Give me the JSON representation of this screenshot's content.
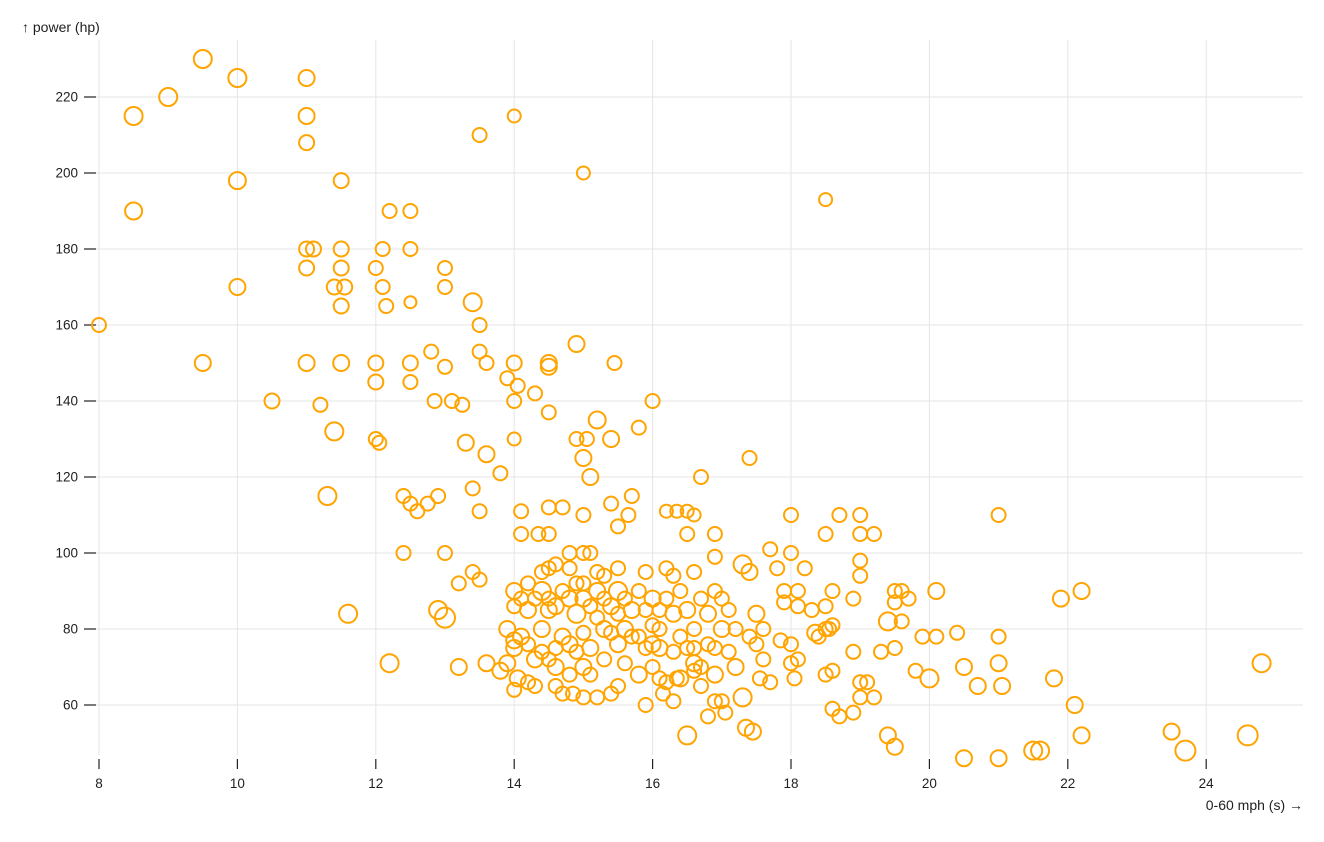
{
  "chart_data": {
    "type": "scatter",
    "title": "",
    "xlabel": "0-60 mph (s) →",
    "ylabel": "↑ power (hp)",
    "x_field": "0-60 mph (s)",
    "y_field": "power (hp)",
    "grid": true,
    "legend": "none",
    "marker": {
      "shape": "circle",
      "fill": "none",
      "stroke_color": "#ffa400",
      "stroke_width": 2
    },
    "colors": {
      "accent": "#ffa400",
      "grid": "#e5e5e5",
      "text": "#1f1f1f",
      "tick": "#222222",
      "background": "#ffffff"
    },
    "x_axis": {
      "label": "0-60 mph (s) →",
      "ticks": [
        8,
        10,
        12,
        14,
        16,
        18,
        20,
        22,
        24
      ],
      "min": 8,
      "max": 25.4
    },
    "y_axis": {
      "label": "↑ power (hp)",
      "ticks": [
        60,
        80,
        100,
        120,
        140,
        160,
        180,
        200,
        220
      ],
      "min": 44,
      "max": 232
    },
    "points": [
      [
        9.5,
        230,
        9
      ],
      [
        10,
        225,
        9
      ],
      [
        11,
        225,
        8
      ],
      [
        9,
        220,
        9
      ],
      [
        8.5,
        215,
        9
      ],
      [
        11,
        215,
        8
      ],
      [
        14,
        215,
        6.5
      ],
      [
        13.5,
        210,
        7
      ],
      [
        11,
        208,
        7.5
      ],
      [
        15,
        200,
        6.5
      ],
      [
        10,
        198,
        8.5
      ],
      [
        11.5,
        198,
        7.5
      ],
      [
        18.5,
        193,
        6.5
      ],
      [
        8.5,
        190,
        8.5
      ],
      [
        12.2,
        190,
        7
      ],
      [
        12.5,
        190,
        7
      ],
      [
        11,
        180,
        7.5
      ],
      [
        11.1,
        180,
        7.5
      ],
      [
        11.5,
        180,
        7.5
      ],
      [
        12.1,
        180,
        7
      ],
      [
        12.5,
        180,
        7
      ],
      [
        11,
        175,
        7.5
      ],
      [
        11.5,
        175,
        7.5
      ],
      [
        12,
        175,
        7
      ],
      [
        13,
        175,
        7
      ],
      [
        10,
        170,
        8
      ],
      [
        11.4,
        170,
        7.5
      ],
      [
        11.55,
        170,
        7.5
      ],
      [
        12.1,
        170,
        7
      ],
      [
        13,
        170,
        7
      ],
      [
        11.5,
        165,
        7.5
      ],
      [
        12.15,
        165,
        7
      ],
      [
        12.5,
        166,
        6
      ],
      [
        13.4,
        166,
        9
      ],
      [
        8,
        160,
        7
      ],
      [
        13.5,
        160,
        7
      ],
      [
        14.9,
        155,
        8
      ],
      [
        13.5,
        153,
        7
      ],
      [
        12.8,
        153,
        7
      ],
      [
        9.5,
        150,
        8
      ],
      [
        11,
        150,
        8
      ],
      [
        11.5,
        150,
        8
      ],
      [
        12,
        150,
        7.5
      ],
      [
        12.5,
        150,
        7.5
      ],
      [
        13.6,
        150,
        7
      ],
      [
        14,
        150,
        7.5
      ],
      [
        14.5,
        150,
        8
      ],
      [
        14.5,
        149,
        8
      ],
      [
        15.45,
        150,
        7
      ],
      [
        13,
        149,
        7
      ],
      [
        12,
        145,
        7.5
      ],
      [
        12.5,
        145,
        7
      ],
      [
        13.9,
        146,
        7
      ],
      [
        14.05,
        144,
        7
      ],
      [
        14.3,
        142,
        7
      ],
      [
        10.5,
        140,
        7.5
      ],
      [
        11.2,
        139,
        7
      ],
      [
        12.85,
        140,
        7
      ],
      [
        13.1,
        140,
        7
      ],
      [
        13.25,
        139,
        7
      ],
      [
        14,
        140,
        7
      ],
      [
        16,
        140,
        7
      ],
      [
        14.5,
        137,
        7
      ],
      [
        15.2,
        135,
        8.5
      ],
      [
        15.8,
        133,
        7
      ],
      [
        11.4,
        132,
        9
      ],
      [
        12,
        130,
        7
      ],
      [
        12.05,
        129,
        7
      ],
      [
        14,
        130,
        6.5
      ],
      [
        14.9,
        130,
        7
      ],
      [
        15.05,
        130,
        7
      ],
      [
        15.4,
        130,
        8
      ],
      [
        13.3,
        129,
        8
      ],
      [
        13.6,
        126,
        8
      ],
      [
        15,
        125,
        8
      ],
      [
        17.4,
        125,
        7
      ],
      [
        13.8,
        121,
        7
      ],
      [
        15.1,
        120,
        8
      ],
      [
        16.7,
        120,
        7
      ],
      [
        13.4,
        117,
        7
      ],
      [
        11.3,
        115,
        9
      ],
      [
        12.4,
        115,
        7
      ],
      [
        12.5,
        113,
        7
      ],
      [
        12.6,
        111,
        7
      ],
      [
        12.75,
        113,
        7
      ],
      [
        12.9,
        115,
        7
      ],
      [
        13.5,
        111,
        7
      ],
      [
        14.1,
        111,
        7
      ],
      [
        14.5,
        112,
        7
      ],
      [
        14.7,
        112,
        7
      ],
      [
        15.4,
        113,
        7
      ],
      [
        15.7,
        115,
        7
      ],
      [
        15.65,
        110,
        7
      ],
      [
        15.5,
        107,
        7
      ],
      [
        15,
        110,
        7
      ],
      [
        16.2,
        111,
        6.5
      ],
      [
        16.35,
        111,
        6.5
      ],
      [
        16.5,
        111,
        6.5
      ],
      [
        16.6,
        110,
        6.5
      ],
      [
        18,
        110,
        7
      ],
      [
        18.7,
        110,
        7
      ],
      [
        19,
        110,
        7
      ],
      [
        21,
        110,
        7
      ],
      [
        14.1,
        105,
        7
      ],
      [
        14.35,
        105,
        7
      ],
      [
        14.5,
        105,
        7
      ],
      [
        16.5,
        105,
        7
      ],
      [
        16.9,
        105,
        7
      ],
      [
        18.5,
        105,
        7
      ],
      [
        19,
        105,
        7
      ],
      [
        19.2,
        105,
        7
      ],
      [
        12.4,
        100,
        7
      ],
      [
        13,
        100,
        7
      ],
      [
        14.8,
        100,
        7
      ],
      [
        15,
        100,
        7
      ],
      [
        15.1,
        100,
        7
      ],
      [
        17.7,
        101,
        7
      ],
      [
        18,
        100,
        7
      ],
      [
        16.9,
        99,
        7
      ],
      [
        19,
        98,
        7
      ],
      [
        19,
        94,
        7
      ],
      [
        17.3,
        97,
        9
      ],
      [
        17.4,
        95,
        8
      ],
      [
        17.8,
        96,
        7
      ],
      [
        18.2,
        96,
        7
      ],
      [
        13.2,
        92,
        7
      ],
      [
        13.4,
        95,
        7
      ],
      [
        13.5,
        93,
        7
      ],
      [
        14.4,
        95,
        7
      ],
      [
        14.5,
        96,
        7
      ],
      [
        14.6,
        97,
        7
      ],
      [
        14.8,
        96,
        7
      ],
      [
        15,
        92,
        7
      ],
      [
        15.2,
        95,
        7
      ],
      [
        15.3,
        94,
        7
      ],
      [
        15.5,
        96,
        7
      ],
      [
        15.9,
        95,
        7
      ],
      [
        16.2,
        96,
        7
      ],
      [
        16.3,
        94,
        7
      ],
      [
        16.6,
        95,
        7
      ],
      [
        17.9,
        90,
        7
      ],
      [
        18.1,
        90,
        7
      ],
      [
        18.6,
        90,
        7
      ],
      [
        19.5,
        90,
        7
      ],
      [
        19.6,
        90,
        7
      ],
      [
        20.1,
        90,
        8
      ],
      [
        22.2,
        90,
        8
      ],
      [
        18.9,
        88,
        7
      ],
      [
        19.7,
        88,
        7
      ],
      [
        21.9,
        88,
        8
      ],
      [
        17.9,
        87,
        7
      ],
      [
        19.5,
        87,
        7
      ],
      [
        18.1,
        86,
        7
      ],
      [
        18.5,
        86,
        7
      ],
      [
        18.3,
        85,
        7
      ],
      [
        12.9,
        85,
        9
      ],
      [
        13,
        83,
        10
      ],
      [
        11.6,
        84,
        9
      ],
      [
        19.4,
        82,
        9
      ],
      [
        19.6,
        82,
        7
      ],
      [
        18.5,
        80,
        7
      ],
      [
        18.35,
        79,
        8
      ],
      [
        18.4,
        78,
        7
      ],
      [
        14,
        90,
        8
      ],
      [
        14.1,
        88,
        7
      ],
      [
        14.2,
        85,
        8
      ],
      [
        14.2,
        92,
        7
      ],
      [
        14.3,
        88,
        7
      ],
      [
        14.4,
        80,
        8
      ],
      [
        14.4,
        90,
        9
      ],
      [
        14.5,
        85,
        8
      ],
      [
        14.5,
        88,
        7
      ],
      [
        14.5,
        72,
        7
      ],
      [
        14.6,
        86,
        8
      ],
      [
        14.6,
        75,
        7
      ],
      [
        14.7,
        90,
        7
      ],
      [
        14.7,
        78,
        8
      ],
      [
        14.8,
        88,
        8
      ],
      [
        14.8,
        68,
        7
      ],
      [
        14.9,
        84,
        9
      ],
      [
        14.9,
        92,
        7
      ],
      [
        15,
        88,
        8
      ],
      [
        15,
        79,
        7
      ],
      [
        15,
        70,
        8
      ],
      [
        15.1,
        86,
        7
      ],
      [
        15.1,
        75,
        8
      ],
      [
        15.2,
        90,
        8
      ],
      [
        15.2,
        83,
        7
      ],
      [
        15.3,
        88,
        7
      ],
      [
        15.3,
        72,
        7
      ],
      [
        15.4,
        86,
        8
      ],
      [
        15.4,
        79,
        7
      ],
      [
        15.5,
        90,
        9
      ],
      [
        15.5,
        84,
        7
      ],
      [
        15.5,
        76,
        8
      ],
      [
        15.5,
        65,
        7
      ],
      [
        15.6,
        88,
        7
      ],
      [
        15.6,
        71,
        7
      ],
      [
        15.7,
        85,
        8
      ],
      [
        15.7,
        78,
        7
      ],
      [
        15.8,
        90,
        7
      ],
      [
        15.8,
        68,
        8
      ],
      [
        15.9,
        85,
        7
      ],
      [
        15.9,
        75,
        7
      ],
      [
        16,
        88,
        8
      ],
      [
        16,
        81,
        7
      ],
      [
        16,
        70,
        7
      ],
      [
        16.1,
        85,
        7
      ],
      [
        16.1,
        75,
        8
      ],
      [
        16.2,
        88,
        7
      ],
      [
        16.2,
        66,
        7
      ],
      [
        16.3,
        84,
        8
      ],
      [
        16.3,
        74,
        7
      ],
      [
        16.4,
        90,
        7
      ],
      [
        16.4,
        67,
        8
      ],
      [
        16.5,
        85,
        8
      ],
      [
        16.5,
        75,
        7
      ],
      [
        16.6,
        80,
        7
      ],
      [
        16.6,
        71,
        8
      ],
      [
        16.7,
        88,
        7
      ],
      [
        16.7,
        65,
        7
      ],
      [
        16.8,
        84,
        8
      ],
      [
        16.8,
        76,
        7
      ],
      [
        16.9,
        90,
        7
      ],
      [
        16.9,
        68,
        8
      ],
      [
        14.1,
        78,
        8
      ],
      [
        14.2,
        76,
        7
      ],
      [
        14.3,
        72,
        8
      ],
      [
        14.4,
        74,
        7
      ],
      [
        14.6,
        70,
        8
      ],
      [
        14.8,
        76,
        8
      ],
      [
        14.9,
        74,
        7
      ],
      [
        15.1,
        68,
        7
      ],
      [
        15.3,
        80,
        8
      ],
      [
        15.6,
        80,
        8
      ],
      [
        15.8,
        78,
        7
      ],
      [
        16,
        76,
        8
      ],
      [
        16.1,
        80,
        7
      ],
      [
        16.4,
        78,
        7
      ],
      [
        16.6,
        75,
        7
      ],
      [
        17,
        88,
        7
      ],
      [
        17,
        80,
        8
      ],
      [
        17.1,
        85,
        7
      ],
      [
        17.2,
        80,
        7
      ],
      [
        17.2,
        70,
        8
      ],
      [
        17.5,
        84,
        8
      ],
      [
        17.5,
        76,
        7
      ],
      [
        17.6,
        72,
        7
      ],
      [
        14,
        86,
        7
      ],
      [
        13.9,
        80,
        8
      ],
      [
        14,
        64,
        7
      ],
      [
        14.2,
        66,
        7
      ],
      [
        14.6,
        65,
        7
      ],
      [
        16.5,
        52,
        9
      ],
      [
        16.8,
        57,
        7
      ],
      [
        16.9,
        61,
        7
      ],
      [
        15.9,
        60,
        7
      ],
      [
        16.15,
        63,
        7
      ],
      [
        16.3,
        61,
        7
      ],
      [
        16.1,
        67,
        7
      ],
      [
        16.35,
        67,
        7
      ],
      [
        16.6,
        69,
        7
      ],
      [
        16.7,
        70,
        7
      ],
      [
        15.2,
        62,
        7
      ],
      [
        15.4,
        63,
        7
      ],
      [
        14.7,
        63,
        7
      ],
      [
        14.85,
        63,
        7
      ],
      [
        15,
        62,
        7
      ],
      [
        14.3,
        65,
        7
      ],
      [
        17,
        61,
        7
      ],
      [
        17.05,
        58,
        7
      ],
      [
        17.3,
        62,
        9
      ],
      [
        17.35,
        54,
        8
      ],
      [
        17.45,
        53,
        8
      ],
      [
        18.6,
        59,
        7
      ],
      [
        18.7,
        57,
        7
      ],
      [
        18.9,
        58,
        7
      ],
      [
        19.4,
        52,
        8
      ],
      [
        19.5,
        49,
        8
      ],
      [
        19,
        66,
        7
      ],
      [
        19.1,
        66,
        7
      ],
      [
        19,
        62,
        7
      ],
      [
        19.2,
        62,
        7
      ],
      [
        18.5,
        68,
        7
      ],
      [
        18.6,
        69,
        7
      ],
      [
        18,
        71,
        7
      ],
      [
        18.1,
        72,
        7
      ],
      [
        18.05,
        67,
        7
      ],
      [
        17.55,
        67,
        7
      ],
      [
        17.7,
        66,
        7
      ],
      [
        16.9,
        75,
        7
      ],
      [
        17.1,
        74,
        7
      ],
      [
        17.4,
        78,
        7
      ],
      [
        17.6,
        80,
        7
      ],
      [
        17.85,
        77,
        7
      ],
      [
        18,
        76,
        7
      ],
      [
        18.55,
        80,
        7
      ],
      [
        18.6,
        81,
        7
      ],
      [
        18.9,
        74,
        7
      ],
      [
        19.3,
        74,
        7
      ],
      [
        19.5,
        75,
        7
      ],
      [
        19.8,
        69,
        7
      ],
      [
        19.9,
        78,
        7
      ],
      [
        12.2,
        71,
        9
      ],
      [
        13.2,
        70,
        8
      ],
      [
        13.6,
        71,
        8
      ],
      [
        13.8,
        69,
        8
      ],
      [
        13.9,
        71,
        8
      ],
      [
        14,
        75,
        8
      ],
      [
        14,
        77,
        8
      ],
      [
        14.05,
        67,
        8
      ],
      [
        20.1,
        78,
        7
      ],
      [
        20.4,
        79,
        7
      ],
      [
        21,
        78,
        7
      ],
      [
        20.5,
        70,
        8
      ],
      [
        21,
        71,
        8
      ],
      [
        20.7,
        65,
        8
      ],
      [
        21.05,
        65,
        8
      ],
      [
        20,
        67,
        9
      ],
      [
        21.8,
        67,
        8
      ],
      [
        22.1,
        60,
        8
      ],
      [
        22.2,
        52,
        8
      ],
      [
        20.5,
        46,
        8
      ],
      [
        21,
        46,
        8
      ],
      [
        21.5,
        48,
        9
      ],
      [
        21.6,
        48,
        9
      ],
      [
        23.5,
        53,
        8
      ],
      [
        23.7,
        48,
        10
      ],
      [
        24.8,
        71,
        9
      ],
      [
        24.6,
        52,
        10
      ]
    ]
  }
}
